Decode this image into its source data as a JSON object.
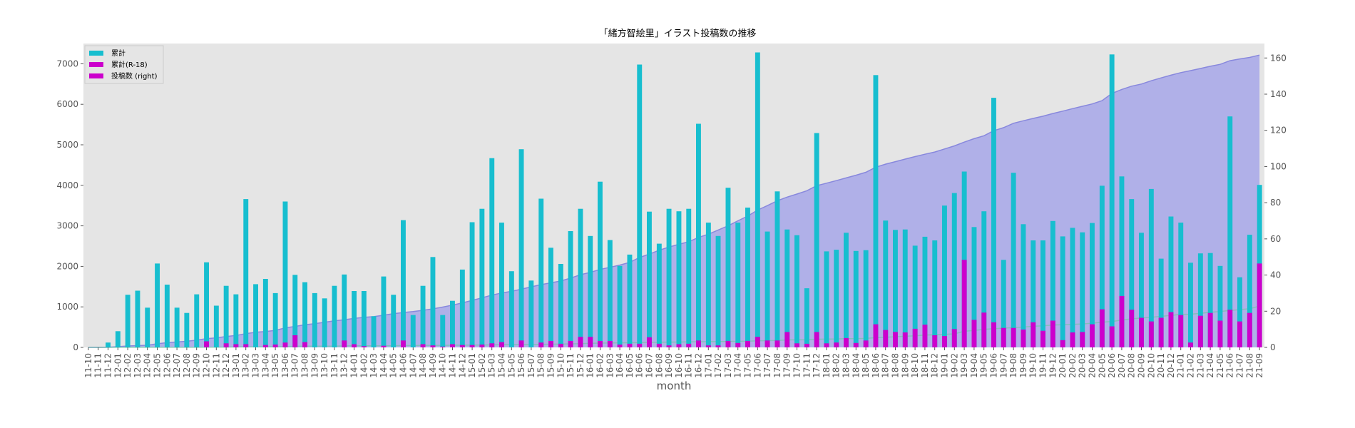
{
  "chart_data": {
    "type": "bar",
    "title": "「緒方智絵里」イラスト投稿数の推移",
    "xlabel": "month",
    "ylabel": "",
    "ylim": [
      0,
      7500
    ],
    "y2lim": [
      0,
      168
    ],
    "yticks": [
      0,
      1000,
      2000,
      3000,
      4000,
      5000,
      6000,
      7000
    ],
    "y2ticks": [
      0,
      20,
      40,
      60,
      80,
      100,
      120,
      140,
      160
    ],
    "grid": false,
    "legend_position": "top-left",
    "colors": {
      "plot_background": "#e5e5e5",
      "series_total": "#17becf",
      "series_r18": "#cc00cc",
      "series_posts": "#cc00cc",
      "area_fill": "#9a9aea",
      "area_line": "#8888dd",
      "r18_line": "#66cc99"
    },
    "categories": [
      "11-10",
      "11-11",
      "11-12",
      "12-01",
      "12-02",
      "12-03",
      "12-04",
      "12-05",
      "12-06",
      "12-07",
      "12-08",
      "12-09",
      "12-10",
      "12-11",
      "12-12",
      "13-01",
      "13-02",
      "13-03",
      "13-04",
      "13-05",
      "13-06",
      "13-07",
      "13-08",
      "13-09",
      "13-10",
      "13-11",
      "13-12",
      "14-01",
      "14-02",
      "14-03",
      "14-04",
      "14-05",
      "14-06",
      "14-07",
      "14-08",
      "14-09",
      "14-10",
      "14-11",
      "14-12",
      "15-01",
      "15-02",
      "15-03",
      "15-04",
      "15-05",
      "15-06",
      "15-07",
      "15-08",
      "15-09",
      "15-10",
      "15-11",
      "15-12",
      "16-01",
      "16-02",
      "16-03",
      "16-04",
      "16-05",
      "16-06",
      "16-07",
      "16-08",
      "16-09",
      "16-10",
      "16-11",
      "16-12",
      "17-01",
      "17-02",
      "17-03",
      "17-04",
      "17-05",
      "17-06",
      "17-07",
      "17-08",
      "17-09",
      "17-10",
      "17-11",
      "17-12",
      "18-01",
      "18-02",
      "18-03",
      "18-04",
      "18-05",
      "18-06",
      "18-07",
      "18-08",
      "18-09",
      "18-10",
      "18-11",
      "18-12",
      "19-01",
      "19-02",
      "19-03",
      "19-04",
      "19-05",
      "19-06",
      "19-07",
      "19-08",
      "19-09",
      "19-10",
      "19-11",
      "19-12",
      "20-01",
      "20-02",
      "20-03",
      "20-04",
      "20-05",
      "20-06",
      "20-07",
      "20-08",
      "20-09",
      "20-10",
      "20-11",
      "20-12",
      "21-01",
      "21-02",
      "21-03",
      "21-04",
      "21-05",
      "21-06",
      "21-07",
      "21-08",
      "21-09"
    ],
    "series": [
      {
        "name": "累計",
        "axis": "left",
        "values": [
          0,
          0,
          120,
          400,
          1300,
          1400,
          980,
          2070,
          1550,
          980,
          850,
          1310,
          2100,
          1030,
          1520,
          1310,
          3660,
          1560,
          1690,
          1340,
          3600,
          1790,
          1610,
          1340,
          1210,
          1520,
          1800,
          1390,
          1390,
          770,
          1750,
          1300,
          3140,
          800,
          1520,
          2230,
          800,
          1150,
          1920,
          3090,
          3420,
          4670,
          3080,
          1880,
          4890,
          1650,
          3670,
          2460,
          2060,
          2870,
          3420,
          2750,
          4090,
          2650,
          2010,
          2290,
          6980,
          3350,
          2560,
          3420,
          3360,
          3420,
          5520,
          3080,
          2750,
          3940,
          3080,
          3450,
          7280,
          2860,
          3850,
          2910,
          2770,
          1460,
          5290,
          2370,
          2410,
          2830,
          2380,
          2400,
          6720,
          3130,
          2900,
          2910,
          2510,
          2730,
          2640,
          3500,
          3810,
          4340,
          2970,
          3360,
          6160,
          2160,
          4310,
          3040,
          2640,
          2640,
          3120,
          2740,
          2950,
          2840,
          3070,
          3990,
          7230,
          4220,
          3660,
          2830,
          3910,
          2190,
          3230,
          3080,
          2090,
          2320,
          2330,
          2010,
          5700,
          1730,
          2780,
          4010
        ]
      },
      {
        "name": "累計(R-18)",
        "axis": "left",
        "values": [
          0,
          0,
          0,
          0,
          0,
          0,
          0,
          0,
          0,
          0,
          0,
          0,
          150,
          0,
          100,
          80,
          80,
          0,
          60,
          70,
          120,
          300,
          130,
          0,
          0,
          0,
          170,
          80,
          30,
          0,
          40,
          0,
          170,
          0,
          80,
          50,
          20,
          80,
          60,
          60,
          70,
          100,
          130,
          0,
          170,
          0,
          120,
          160,
          90,
          160,
          260,
          260,
          160,
          160,
          70,
          90,
          90,
          250,
          90,
          50,
          80,
          90,
          170,
          50,
          50,
          160,
          110,
          160,
          260,
          170,
          170,
          380,
          100,
          90,
          380,
          100,
          120,
          230,
          110,
          170,
          570,
          430,
          380,
          370,
          460,
          560,
          300,
          280,
          450,
          2160,
          680,
          860,
          620,
          480,
          480,
          440,
          620,
          410,
          660,
          180,
          370,
          380,
          570,
          940,
          520,
          1270,
          930,
          730,
          640,
          730,
          870,
          800,
          120,
          780,
          850,
          660,
          930,
          640,
          850,
          2070
        ]
      },
      {
        "name": "投稿数 (right)",
        "axis": "right",
        "values": [
          0,
          0,
          0.1,
          0.4,
          0.8,
          1.0,
          1.2,
          2.0,
          2.6,
          3.0,
          3.4,
          4.0,
          4.8,
          5.3,
          6.0,
          6.6,
          7.6,
          8.4,
          8.8,
          9.4,
          10.8,
          11.6,
          12.5,
          13.1,
          13.9,
          14.7,
          15.3,
          16.0,
          16.6,
          17.0,
          17.8,
          18.6,
          19.3,
          19.8,
          20.5,
          21.3,
          22.3,
          23.4,
          24.6,
          26.0,
          27.4,
          28.9,
          30.1,
          31.0,
          32.2,
          33.5,
          34.7,
          35.7,
          36.7,
          38.3,
          40.2,
          41.5,
          43.1,
          44.3,
          45.5,
          47.0,
          49.7,
          51.6,
          53.7,
          55.5,
          57.0,
          58.4,
          60.8,
          62.6,
          64.9,
          67.2,
          70.0,
          72.6,
          75.9,
          78.4,
          81.1,
          83.1,
          84.8,
          86.6,
          89.4,
          90.8,
          92.2,
          93.7,
          95.2,
          96.8,
          99.6,
          101.3,
          102.7,
          104.1,
          105.5,
          106.8,
          108.0,
          109.7,
          111.4,
          113.5,
          115.4,
          117.0,
          119.8,
          121.5,
          123.9,
          125.3,
          126.6,
          127.8,
          129.3,
          130.6,
          132.0,
          133.3,
          134.6,
          136.4,
          140.4,
          142.6,
          144.4,
          145.6,
          147.4,
          149.0,
          150.5,
          151.9,
          153.0,
          154.2,
          155.4,
          156.5,
          158.5,
          159.5,
          160.3,
          161.6
        ]
      }
    ]
  }
}
